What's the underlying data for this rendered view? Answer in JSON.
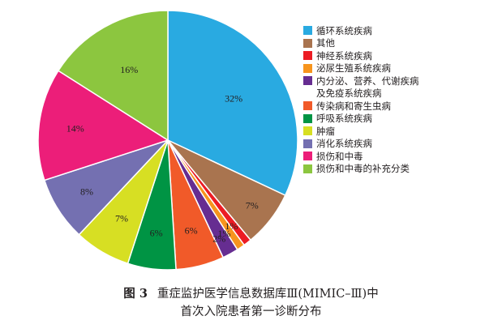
{
  "chart_data": {
    "type": "pie",
    "start": "12 o'clock",
    "direction": "clockwise",
    "slices": [
      {
        "label": "循环系统疾病",
        "value": 32,
        "value_label": "32%",
        "color": "#29aae1"
      },
      {
        "label": "其他",
        "value": 7,
        "value_label": "7%",
        "color": "#a9744f"
      },
      {
        "label": "神经系统疾病",
        "value": 1,
        "value_label": "1%",
        "color": "#ec1c24"
      },
      {
        "label": "泌尿生殖系统疾病",
        "value": 1,
        "value_label": "1%",
        "color": "#f7941d"
      },
      {
        "label": "内分泌、营养、代谢疾病",
        "label_line2": "及免疫系统疾病",
        "value": 2,
        "value_label": "2%",
        "color": "#662d91"
      },
      {
        "label": "传染病和寄生虫病",
        "value": 6,
        "value_label": "6%",
        "color": "#f15a29"
      },
      {
        "label": "呼吸系统疾病",
        "value": 6,
        "value_label": "6%",
        "color": "#009444"
      },
      {
        "label": "肿瘤",
        "value": 7,
        "value_label": "7%",
        "color": "#d7df23"
      },
      {
        "label": "消化系统疾病",
        "value": 8,
        "value_label": "8%",
        "color": "#7470b1"
      },
      {
        "label": "损伤和中毒",
        "value": 14,
        "value_label": "14%",
        "color": "#ec1e79"
      },
      {
        "label": "损伤和中毒的补充分类",
        "value": 16,
        "value_label": "16%",
        "color": "#8cc63f"
      }
    ],
    "legend_position": "right"
  },
  "caption": {
    "figure_number": "图 3",
    "line1": "重症监护医学信息数据库Ⅲ(MIMIC–Ⅲ)中",
    "line2": "首次入院患者第一诊断分布"
  }
}
